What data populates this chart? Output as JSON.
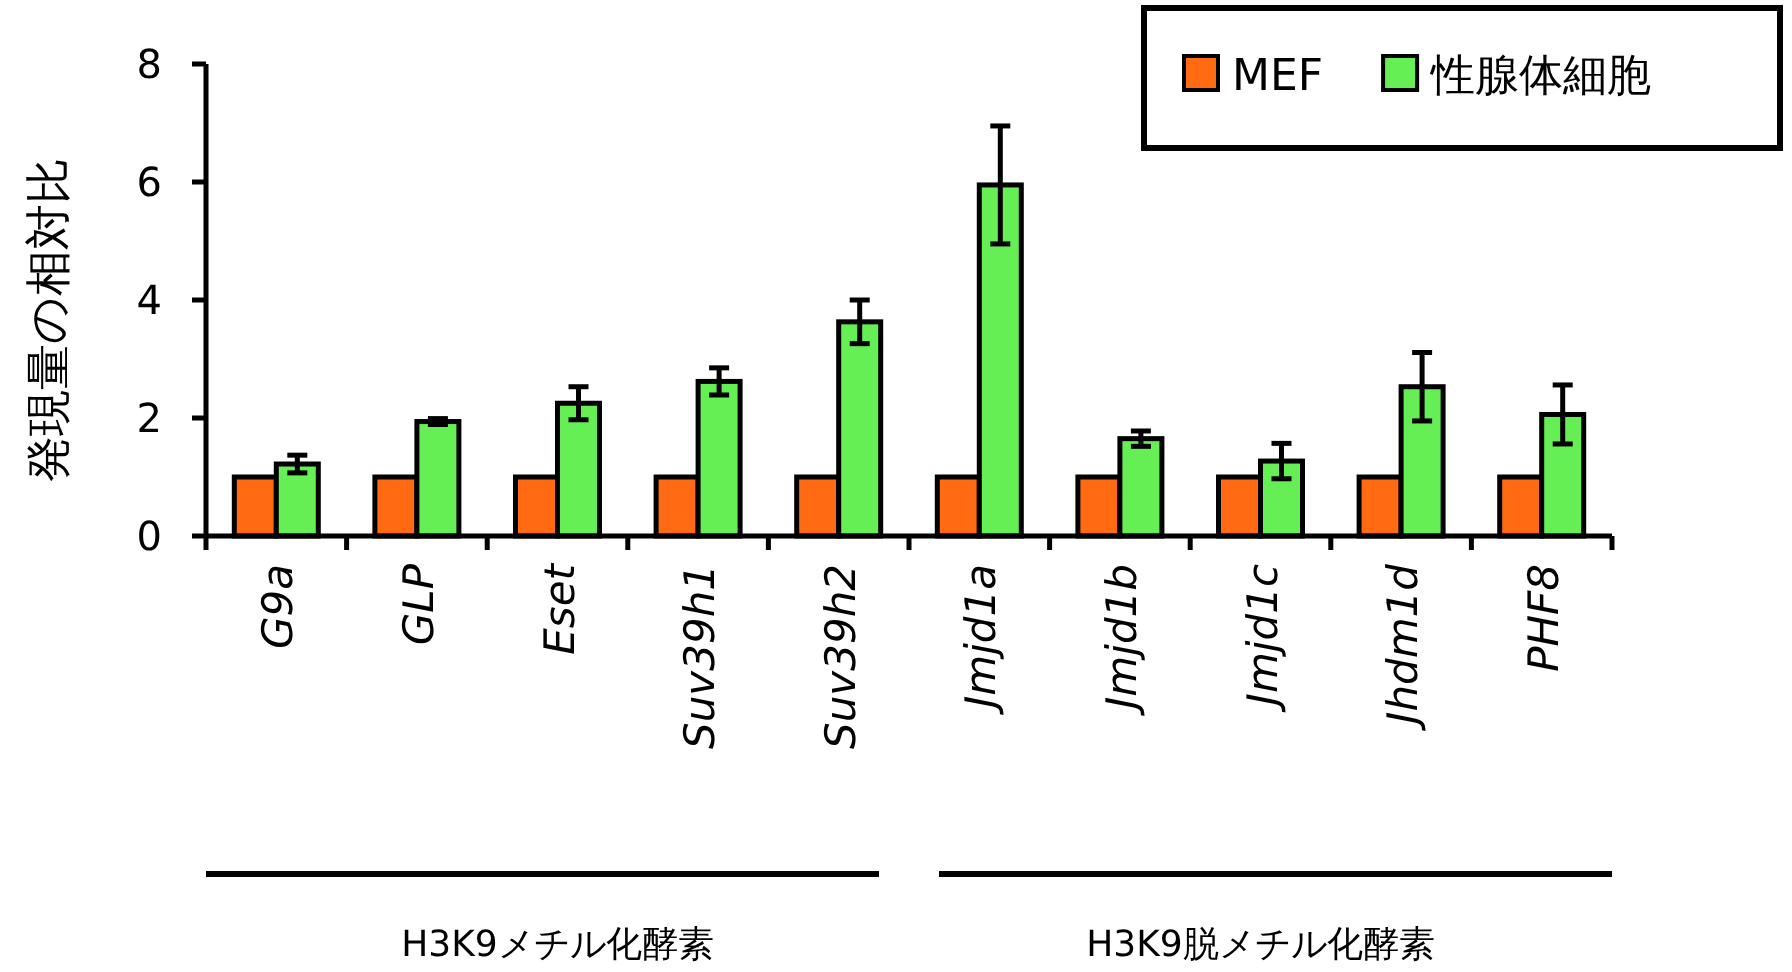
{
  "chart_data": {
    "type": "bar",
    "ylabel": "発現量の相対比",
    "categories": [
      "G9a",
      "GLP",
      "Eset",
      "Suv39h1",
      "Suv39h2",
      "Jmjd1a",
      "Jmjd1b",
      "Jmjd1c",
      "Jhdm1d",
      "PHF8"
    ],
    "series": [
      {
        "name": "MEF",
        "color": "#ff6a13",
        "values": [
          1,
          1,
          1,
          1,
          1,
          1,
          1,
          1,
          1,
          1
        ]
      },
      {
        "name": "性腺体細胞",
        "color": "#66ee55",
        "values": [
          1.22,
          1.94,
          2.25,
          2.62,
          3.63,
          5.95,
          1.65,
          1.27,
          2.53,
          2.06
        ],
        "errors": [
          0.15,
          0.05,
          0.28,
          0.23,
          0.37,
          1.0,
          0.13,
          0.3,
          0.58,
          0.5
        ]
      }
    ],
    "ylim": [
      0,
      8
    ],
    "yticks": [
      0,
      2,
      4,
      6,
      8
    ],
    "grid": false,
    "legend": "top right",
    "annotations": [
      "H3K9メチル化酵素",
      "H3K9脱メチル化酵素"
    ]
  }
}
